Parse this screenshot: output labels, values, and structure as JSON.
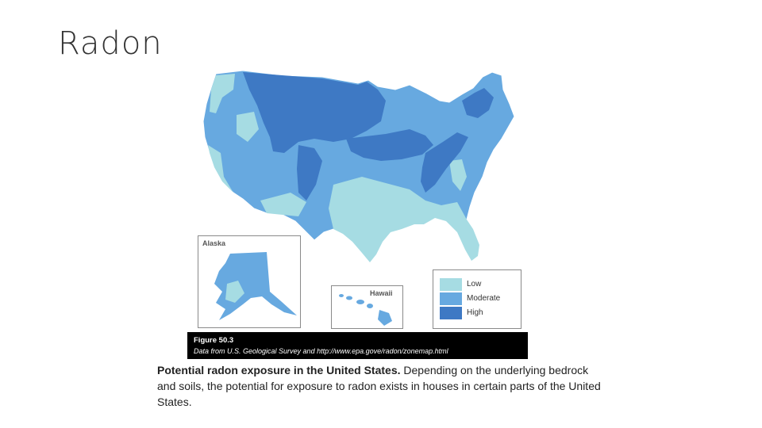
{
  "slide": {
    "title": "Radon"
  },
  "map": {
    "colors": {
      "low": "#a6dce3",
      "moderate": "#67a9e0",
      "high": "#3e79c4",
      "border": "#ffffff"
    },
    "insets": {
      "alaska": "Alaska",
      "hawaii": "Hawaii"
    }
  },
  "legend": {
    "items": [
      {
        "label": "Low",
        "color": "#a6dce3"
      },
      {
        "label": "Moderate",
        "color": "#67a9e0"
      },
      {
        "label": "High",
        "color": "#3e79c4"
      }
    ]
  },
  "caption": {
    "figure_number": "Figure 50.3",
    "source": "Data from U.S. Geological Survey and http://www.epa.gove/radon/zonemap.html"
  },
  "description": {
    "bold": "Potential radon exposure in the United States.",
    "text": " Depending on the underlying bedrock and soils, the potential for exposure to radon exists in houses in certain parts of the United States."
  }
}
